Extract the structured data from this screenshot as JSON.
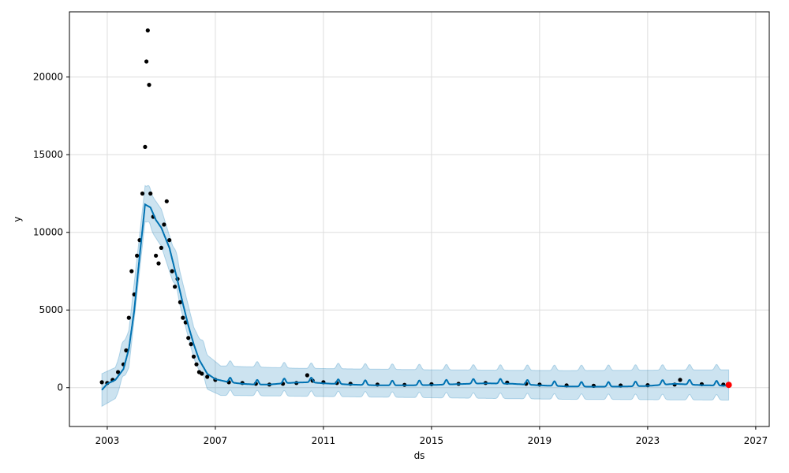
{
  "chart_data": {
    "type": "line",
    "xlabel": "ds",
    "ylabel": "y",
    "xlim": [
      2001.6,
      2027.5
    ],
    "ylim": [
      -2500,
      24200
    ],
    "x_ticks": [
      2003,
      2007,
      2011,
      2015,
      2019,
      2023,
      2027
    ],
    "x_tick_labels": [
      "2003",
      "2007",
      "2011",
      "2015",
      "2019",
      "2023",
      "2027"
    ],
    "y_ticks": [
      0,
      5000,
      10000,
      15000,
      20000
    ],
    "y_tick_labels": [
      "0",
      "5000",
      "10000",
      "15000",
      "20000"
    ],
    "grid": true,
    "colors": {
      "forecast_line": "#0072B2",
      "uncertainty_band": "#0072B2",
      "observed_points": "#000000",
      "highlight_point": "#ff0000",
      "grid": "#dddddd"
    },
    "series": [
      {
        "role": "forecast",
        "x": [
          2002.8,
          2003.0,
          2003.3,
          2003.6,
          2003.8,
          2004.0,
          2004.2,
          2004.4,
          2004.6,
          2004.8,
          2005.0,
          2005.3,
          2005.6,
          2005.8,
          2006.0,
          2006.2,
          2006.4,
          2006.7,
          2007.0,
          2007.5,
          2008.0,
          2008.5,
          2009.0,
          2009.5,
          2010.0,
          2010.5,
          2011.0,
          2012.0,
          2013.0,
          2014.0,
          2015.0,
          2016.0,
          2017.0,
          2018.0,
          2019.0,
          2020.0,
          2021.0,
          2022.0,
          2023.0,
          2024.0,
          2025.0,
          2026.0
        ],
        "y": [
          -150,
          250,
          500,
          1200,
          2500,
          5000,
          8500,
          11800,
          11600,
          10800,
          10300,
          9000,
          6900,
          5400,
          4000,
          2800,
          1800,
          900,
          550,
          350,
          250,
          200,
          200,
          280,
          330,
          350,
          280,
          200,
          150,
          150,
          170,
          230,
          280,
          250,
          150,
          80,
          60,
          70,
          110,
          250,
          160,
          120
        ]
      },
      {
        "role": "observed",
        "x": [
          2002.8,
          2003.0,
          2003.2,
          2003.4,
          2003.6,
          2003.7,
          2003.8,
          2003.9,
          2004.0,
          2004.1,
          2004.2,
          2004.3,
          2004.4,
          2004.45,
          2004.5,
          2004.55,
          2004.6,
          2004.7,
          2004.8,
          2004.9,
          2005.0,
          2005.1,
          2005.2,
          2005.3,
          2005.4,
          2005.5,
          2005.6,
          2005.7,
          2005.8,
          2005.9,
          2006.0,
          2006.1,
          2006.2,
          2006.3,
          2006.4,
          2006.5,
          2006.7,
          2007.0,
          2007.5,
          2008.0,
          2008.5,
          2009.0,
          2009.5,
          2010.0,
          2010.4,
          2010.6,
          2011.0,
          2011.5,
          2012.0,
          2013.0,
          2014.0,
          2015.0,
          2016.0,
          2017.0,
          2017.8,
          2018.5,
          2019.0,
          2020.0,
          2021.0,
          2022.0,
          2023.0,
          2024.0,
          2024.2,
          2025.0,
          2025.8
        ],
        "y": [
          350,
          300,
          500,
          1000,
          1500,
          2400,
          4500,
          7500,
          6000,
          8500,
          9500,
          12500,
          15500,
          21000,
          23000,
          19500,
          12500,
          11000,
          8500,
          8000,
          9000,
          10500,
          12000,
          9500,
          7500,
          6500,
          7000,
          5500,
          4500,
          4200,
          3200,
          2800,
          2000,
          1500,
          1000,
          900,
          700,
          500,
          350,
          300,
          250,
          200,
          250,
          300,
          800,
          450,
          350,
          300,
          250,
          200,
          180,
          220,
          250,
          300,
          320,
          250,
          200,
          150,
          120,
          140,
          160,
          200,
          500,
          220,
          200
        ]
      },
      {
        "role": "lower_bound",
        "x": [
          2002.8,
          2003.3,
          2003.8,
          2004.4,
          2005.0,
          2005.6,
          2006.2,
          2006.7,
          2007.2,
          2010.0,
          2015.0,
          2020.0,
          2026.0
        ],
        "y": [
          -1200,
          -700,
          1300,
          10700,
          9100,
          5900,
          1900,
          -100,
          -500,
          -550,
          -650,
          -750,
          -800
        ]
      },
      {
        "role": "upper_bound",
        "x": [
          2002.8,
          2003.3,
          2003.8,
          2004.4,
          2005.0,
          2005.6,
          2006.2,
          2006.7,
          2007.2,
          2010.0,
          2015.0,
          2020.0,
          2026.0
        ],
        "y": [
          900,
          1300,
          3700,
          13000,
          11500,
          8100,
          3900,
          2100,
          1400,
          1250,
          1150,
          1100,
          1150
        ]
      }
    ],
    "highlight_points": [
      {
        "x": 2026.0,
        "y": 180
      }
    ]
  }
}
